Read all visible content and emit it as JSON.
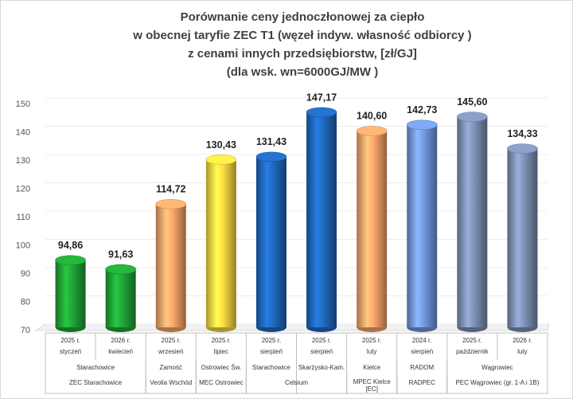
{
  "chart_data": {
    "type": "bar",
    "title": [
      "Porównanie ceny jednoczłonowej za ciepło",
      "w obecnej taryfie ZEC T1 (węzeł indyw. własność odbiorcy )",
      "z cenami innych przedsiębiorstw, [zł/GJ]",
      "(dla wsk. wn=6000GJ/MW )"
    ],
    "categories": [
      [
        "2025 r.",
        "styczeń"
      ],
      [
        "2026 r.",
        "kwiecień"
      ],
      [
        "2025 r.",
        "wrzesień"
      ],
      [
        "2025 r.",
        "lipiec"
      ],
      [
        "2025 r.",
        "sierpień"
      ],
      [
        "2025 r.",
        "sierpień"
      ],
      [
        "2025 r.",
        "luty"
      ],
      [
        "2024 r.",
        "sierpień"
      ],
      [
        "2025 r.",
        "październik"
      ],
      [
        "2026 r.",
        "luty"
      ]
    ],
    "cities": [
      {
        "label": "Starachowice",
        "span": 2
      },
      {
        "label": "Zamość",
        "span": 1
      },
      {
        "label": "Ostrowiec Św.",
        "span": 1
      },
      {
        "label": "Starachowice",
        "span": 1
      },
      {
        "label": "Skarżysko-Kam.",
        "span": 1
      },
      {
        "label": "Kielce",
        "span": 1
      },
      {
        "label": "RADOM",
        "span": 1
      },
      {
        "label": "Wągrowiec",
        "span": 2
      }
    ],
    "companies": [
      {
        "label": "ZEC Starachowice",
        "span": 2
      },
      {
        "label": "Veolia Wschód",
        "span": 1
      },
      {
        "label": "MEC Ostrowiec",
        "span": 1
      },
      {
        "label": "Celsium",
        "span": 2
      },
      {
        "label": "MPEC Kielce [EC]",
        "span": 1
      },
      {
        "label": "RADPEC",
        "span": 1
      },
      {
        "label": "PEC Wągrowiec (gr. 1-A i 1B)",
        "span": 2
      }
    ],
    "values": [
      94.86,
      91.63,
      114.72,
      130.43,
      131.43,
      147.17,
      140.6,
      142.73,
      145.6,
      134.33
    ],
    "value_labels": [
      "94,86",
      "91,63",
      "114,72",
      "130,43",
      "131,43",
      "147,17",
      "140,60",
      "142,73",
      "145,60",
      "134,33"
    ],
    "colors": [
      "#1fa035",
      "#1fa035",
      "#f4a167",
      "#f6d440",
      "#1f65b8",
      "#1f65b8",
      "#f4a167",
      "#6f95d8",
      "#7a8db0",
      "#7a8db0"
    ],
    "ylim": [
      70,
      150
    ],
    "yticks": [
      70,
      80,
      90,
      100,
      110,
      120,
      130,
      140,
      150
    ],
    "grid": true
  }
}
